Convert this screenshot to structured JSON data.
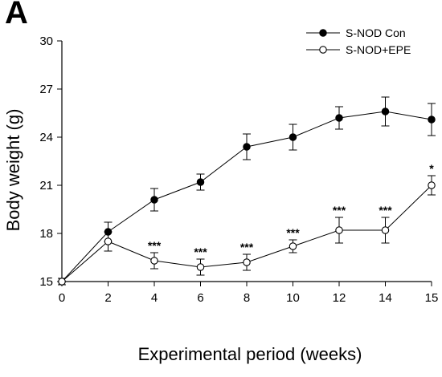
{
  "panel_label": "A",
  "chart_data": {
    "type": "line",
    "xlabel": "Experimental period (weeks)",
    "ylabel": "Body weight (g)",
    "x_ticks": [
      "0",
      "2",
      "4",
      "6",
      "8",
      "10",
      "12",
      "14",
      "15"
    ],
    "y_ticks": [
      15,
      18,
      21,
      24,
      27,
      30
    ],
    "ylim": [
      15,
      30
    ],
    "legend_position": "top-right",
    "series": [
      {
        "name": "S-NOD Con",
        "marker": "filled-circle",
        "color": "#000000",
        "values": [
          15.0,
          18.1,
          20.1,
          21.2,
          23.4,
          24.0,
          25.2,
          25.6,
          25.1
        ],
        "errors": [
          0.2,
          0.6,
          0.7,
          0.5,
          0.8,
          0.8,
          0.7,
          0.9,
          1.0
        ],
        "annotations": [
          "",
          "",
          "",
          "",
          "",
          "",
          "",
          "",
          ""
        ]
      },
      {
        "name": "S-NOD+EPE",
        "marker": "open-circle",
        "color": "#000000",
        "values": [
          15.0,
          17.5,
          16.3,
          15.9,
          16.2,
          17.2,
          18.2,
          18.2,
          21.0
        ],
        "errors": [
          0.2,
          0.6,
          0.5,
          0.5,
          0.5,
          0.4,
          0.8,
          0.8,
          0.6
        ],
        "annotations": [
          "",
          "",
          "***",
          "***",
          "***",
          "***",
          "***",
          "***",
          "*"
        ]
      }
    ]
  }
}
